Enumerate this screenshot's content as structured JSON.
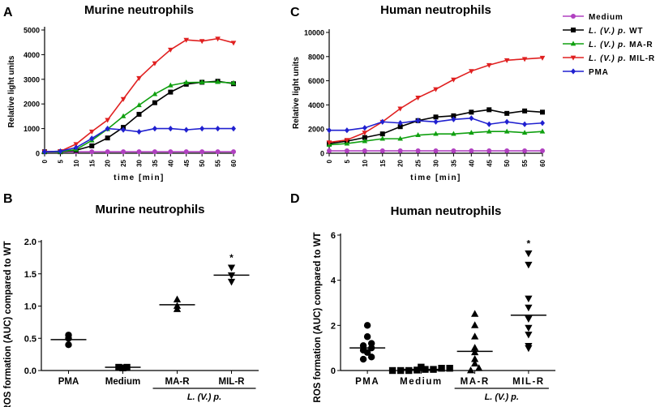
{
  "panel_letters": {
    "A": "A",
    "B": "B",
    "C": "C",
    "D": "D"
  },
  "colors": {
    "medium": "#b040c0",
    "wt": "#000000",
    "mar": "#10a010",
    "milr": "#e02020",
    "pma": "#2020d0"
  },
  "legend": {
    "items": [
      {
        "key": "medium",
        "pre": "Medium",
        "suf": ""
      },
      {
        "key": "wt",
        "pre": "L. (V.) p.",
        "suf": " WT"
      },
      {
        "key": "mar",
        "pre": "L. (V.) p.",
        "suf": " MA-R"
      },
      {
        "key": "milr",
        "pre": "L. (V.) p.",
        "suf": " MIL-R"
      },
      {
        "key": "pma",
        "pre": "PMA",
        "suf": ""
      }
    ]
  },
  "chart_data": [
    {
      "id": "A",
      "type": "line",
      "title": "Murine neutrophils",
      "xlabel": "time [min]",
      "ylabel": "Relative light units",
      "x": [
        0,
        5,
        10,
        15,
        20,
        25,
        30,
        35,
        40,
        45,
        50,
        55,
        60
      ],
      "ylim": [
        0,
        5000
      ],
      "yticks": [
        0,
        1000,
        2000,
        3000,
        4000,
        5000
      ],
      "series": [
        {
          "key": "medium",
          "name": "Medium",
          "marker": "circle",
          "values": [
            60,
            60,
            60,
            60,
            60,
            60,
            60,
            60,
            60,
            60,
            60,
            60,
            60
          ]
        },
        {
          "key": "wt",
          "name": "L. (V.) p. WT",
          "marker": "square",
          "values": [
            60,
            60,
            120,
            300,
            620,
            1050,
            1580,
            2050,
            2480,
            2800,
            2880,
            2920,
            2820
          ]
        },
        {
          "key": "mar",
          "name": "L. (V.) p. MA-R",
          "marker": "triangle-up",
          "values": [
            60,
            60,
            150,
            520,
            980,
            1500,
            1950,
            2400,
            2750,
            2870,
            2880,
            2890,
            2850
          ]
        },
        {
          "key": "milr",
          "name": "L. (V.) p. MIL-R",
          "marker": "triangle-down",
          "values": [
            60,
            80,
            370,
            880,
            1350,
            2200,
            3050,
            3650,
            4200,
            4600,
            4550,
            4650,
            4480
          ]
        },
        {
          "key": "pma",
          "name": "PMA",
          "marker": "diamond",
          "values": [
            60,
            80,
            230,
            600,
            1000,
            950,
            870,
            1000,
            1000,
            950,
            1000,
            1000,
            1000
          ]
        }
      ]
    },
    {
      "id": "C",
      "type": "line",
      "title": "Human neutrophils",
      "xlabel": "time [min]",
      "ylabel": "Relative light units",
      "x": [
        0,
        5,
        10,
        15,
        20,
        25,
        30,
        35,
        40,
        45,
        50,
        55,
        60
      ],
      "ylim": [
        0,
        10000
      ],
      "yticks": [
        0,
        2000,
        4000,
        6000,
        8000,
        10000
      ],
      "series": [
        {
          "key": "medium",
          "name": "Medium",
          "marker": "circle",
          "values": [
            200,
            200,
            200,
            200,
            200,
            200,
            200,
            200,
            200,
            200,
            200,
            200,
            200
          ]
        },
        {
          "key": "wt",
          "name": "L. (V.) p. WT",
          "marker": "square",
          "values": [
            800,
            1000,
            1300,
            1600,
            2200,
            2700,
            3000,
            3100,
            3400,
            3600,
            3300,
            3500,
            3400
          ]
        },
        {
          "key": "mar",
          "name": "L. (V.) p. MA-R",
          "marker": "triangle-up",
          "values": [
            700,
            800,
            1000,
            1200,
            1200,
            1500,
            1600,
            1600,
            1700,
            1800,
            1800,
            1700,
            1800
          ]
        },
        {
          "key": "milr",
          "name": "L. (V.) p. MIL-R",
          "marker": "triangle-down",
          "values": [
            900,
            1100,
            1700,
            2600,
            3700,
            4600,
            5300,
            6100,
            6800,
            7300,
            7700,
            7800,
            7900
          ]
        },
        {
          "key": "pma",
          "name": "PMA",
          "marker": "diamond",
          "values": [
            1900,
            1900,
            2100,
            2600,
            2500,
            2700,
            2600,
            2800,
            2900,
            2400,
            2600,
            2400,
            2500
          ]
        }
      ]
    },
    {
      "id": "B",
      "type": "scatter",
      "title": "Murine neutrophils",
      "ylabel": "ROS formation (AUC) compared to WT",
      "ylim": [
        0,
        2.0
      ],
      "yticks": [
        0.0,
        0.5,
        1.0,
        1.5,
        2.0
      ],
      "ytick_labels": [
        "0.0",
        "0.5",
        "1.0",
        "1.5",
        "2.0"
      ],
      "group_label": "L. (V.) p.",
      "groups": [
        {
          "label": "PMA",
          "marker": "circle",
          "mean": 0.48,
          "points": [
            0.4,
            0.5,
            0.55
          ],
          "annotation": ""
        },
        {
          "label": "Medium",
          "marker": "square",
          "mean": 0.05,
          "points": [
            0.04,
            0.05,
            0.05
          ],
          "annotation": ""
        },
        {
          "label": "MA-R",
          "marker": "triangle-up",
          "mean": 1.02,
          "points": [
            0.95,
            1.0,
            1.1
          ],
          "annotation": ""
        },
        {
          "label": "MIL-R",
          "marker": "triangle-down",
          "mean": 1.48,
          "points": [
            1.38,
            1.48,
            1.6
          ],
          "annotation": "*"
        }
      ]
    },
    {
      "id": "D",
      "type": "scatter",
      "title": "Human neutrophils",
      "ylabel": "ROS formation (AUC) compared to WT",
      "ylim": [
        0,
        6
      ],
      "yticks": [
        0,
        2,
        4,
        6
      ],
      "ytick_labels": [
        "0",
        "2",
        "4",
        "6"
      ],
      "group_label": "L. (V.) p.",
      "groups": [
        {
          "label": "PMA",
          "marker": "circle",
          "mean": 1.0,
          "points": [
            0.5,
            0.6,
            0.8,
            0.9,
            1.0,
            1.1,
            1.2,
            1.5,
            2.0
          ],
          "annotation": ""
        },
        {
          "label": "Medium",
          "marker": "square",
          "mean": 0.05,
          "points": [
            0.0,
            0.0,
            0.0,
            0.02,
            0.05,
            0.05,
            0.1,
            0.1,
            0.15
          ],
          "annotation": ""
        },
        {
          "label": "MA-R",
          "marker": "triangle-up",
          "mean": 0.85,
          "points": [
            0.0,
            0.1,
            0.3,
            0.5,
            0.8,
            1.0,
            1.5,
            2.0,
            2.5
          ],
          "annotation": ""
        },
        {
          "label": "MIL-R",
          "marker": "triangle-down",
          "mean": 2.45,
          "points": [
            1.0,
            1.1,
            1.6,
            1.9,
            2.3,
            2.8,
            3.2,
            4.7,
            5.2
          ],
          "annotation": "*"
        }
      ]
    }
  ]
}
